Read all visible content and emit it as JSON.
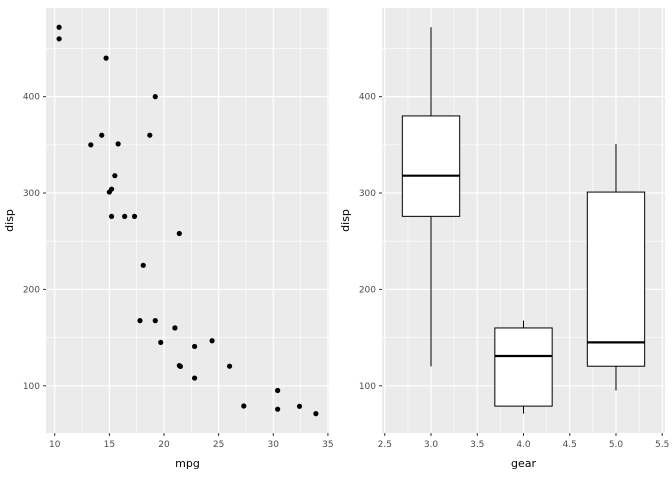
{
  "figure": {
    "background": "#FFFFFF",
    "panel_background": "#EBEBEB",
    "grid_color": "#FFFFFF",
    "tick_color": "#333333",
    "label_color": "#4D4D4D",
    "title_color": "#000000",
    "point_color": "#000000",
    "box_fill": "#FFFFFF",
    "box_stroke": "#000000"
  },
  "chart_data": [
    {
      "type": "scatter",
      "title": "",
      "xlabel": "mpg",
      "ylabel": "disp",
      "xlim": [
        9.2,
        35.1
      ],
      "ylim": [
        51,
        492
      ],
      "xticks": [
        "10",
        "15",
        "20",
        "25",
        "30",
        "35"
      ],
      "yticks": [
        "100",
        "200",
        "300",
        "400"
      ],
      "xticks_minor": [
        12.5,
        17.5,
        22.5,
        27.5,
        32.5
      ],
      "yticks_minor": [
        150,
        250,
        350,
        450
      ],
      "grid": true,
      "points": [
        [
          21.0,
          160.0
        ],
        [
          21.0,
          160.0
        ],
        [
          22.8,
          108.0
        ],
        [
          21.4,
          258.0
        ],
        [
          18.7,
          360.0
        ],
        [
          18.1,
          225.0
        ],
        [
          14.3,
          360.0
        ],
        [
          24.4,
          146.7
        ],
        [
          22.8,
          140.8
        ],
        [
          19.2,
          167.6
        ],
        [
          17.8,
          167.6
        ],
        [
          16.4,
          275.8
        ],
        [
          17.3,
          275.8
        ],
        [
          15.2,
          275.8
        ],
        [
          10.4,
          472.0
        ],
        [
          10.4,
          460.0
        ],
        [
          14.7,
          440.0
        ],
        [
          32.4,
          78.7
        ],
        [
          30.4,
          75.7
        ],
        [
          33.9,
          71.1
        ],
        [
          21.5,
          120.1
        ],
        [
          15.5,
          318.0
        ],
        [
          15.2,
          304.0
        ],
        [
          13.3,
          350.0
        ],
        [
          19.2,
          400.0
        ],
        [
          27.3,
          79.0
        ],
        [
          26.0,
          120.3
        ],
        [
          30.4,
          95.1
        ],
        [
          15.8,
          351.0
        ],
        [
          19.7,
          145.0
        ],
        [
          15.0,
          301.0
        ],
        [
          21.4,
          121.0
        ]
      ]
    },
    {
      "type": "boxplot",
      "title": "",
      "xlabel": "gear",
      "ylabel": "disp",
      "xlim": [
        2.47,
        5.53
      ],
      "ylim": [
        51,
        492
      ],
      "xticks": [
        "2.5",
        "3.0",
        "3.5",
        "4.0",
        "4.5",
        "5.0",
        "5.5"
      ],
      "yticks": [
        "100",
        "200",
        "300",
        "400"
      ],
      "xticks_minor": [
        2.75,
        3.25,
        3.75,
        4.25,
        4.75,
        5.25
      ],
      "yticks_minor": [
        150,
        250,
        350,
        450
      ],
      "grid": true,
      "box_width": 0.62,
      "boxes": [
        {
          "x": 3,
          "min": 120.1,
          "q1": 275.8,
          "median": 318.0,
          "q3": 380.0,
          "max": 472.0
        },
        {
          "x": 4,
          "min": 71.1,
          "q1": 78.9,
          "median": 130.9,
          "q3": 160.0,
          "max": 167.6
        },
        {
          "x": 5,
          "min": 95.1,
          "q1": 120.3,
          "median": 145.0,
          "q3": 301.0,
          "max": 351.0
        }
      ]
    }
  ]
}
